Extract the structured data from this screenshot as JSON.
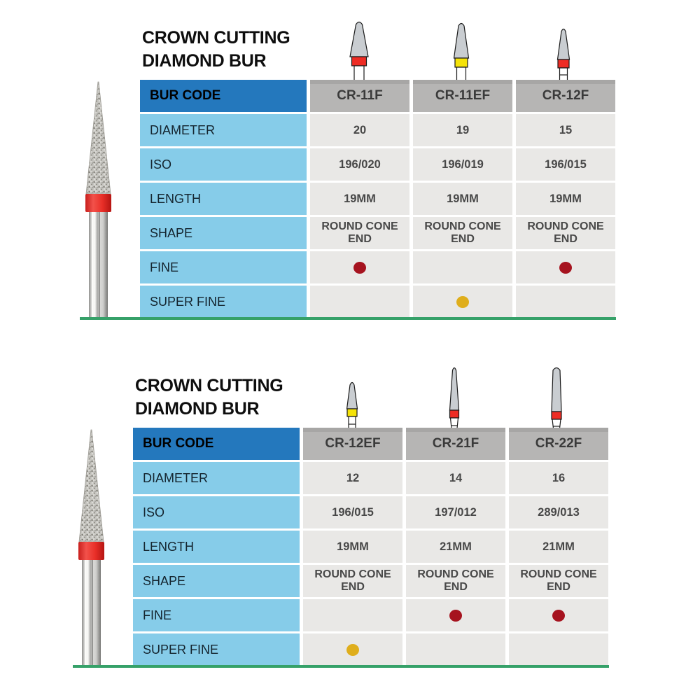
{
  "colors": {
    "header_blue": "#2478bd",
    "label_blue": "#86cce9",
    "col_header_gray": "#b6b5b4",
    "col_header_dark": "#a7a6a5",
    "cell_gray": "#e9e8e6",
    "fine_dot": "#a6131f",
    "super_fine_dot": "#dfae1c",
    "green_line": "#36a169",
    "band_red": "#ee2c24",
    "band_yellow": "#f5e308"
  },
  "row_labels": {
    "bur_code": "BUR CODE",
    "diameter": "DIAMETER",
    "iso": "ISO",
    "length": "LENGTH",
    "shape": "SHAPE",
    "fine": "FINE",
    "super_fine": "SUPER FINE"
  },
  "sections": [
    {
      "title_line1": "CROWN CUTTING",
      "title_line2": "DIAMOND BUR",
      "columns": [
        {
          "code": "CR-11F",
          "diameter": "20",
          "iso": "196/020",
          "length": "19MM",
          "shape": "ROUND CONE END",
          "fine": true,
          "super_fine": false,
          "icon": {
            "name": "round-cone-end-bur-red-band",
            "variant": "wide",
            "band": "#ee2c24"
          }
        },
        {
          "code": "CR-11EF",
          "diameter": "19",
          "iso": "196/019",
          "length": "19MM",
          "shape": "ROUND CONE END",
          "fine": false,
          "super_fine": true,
          "icon": {
            "name": "round-cone-end-bur-yellow-band",
            "variant": "medium",
            "band": "#f5e308"
          }
        },
        {
          "code": "CR-12F",
          "diameter": "15",
          "iso": "196/015",
          "length": "19MM",
          "shape": "ROUND CONE END",
          "fine": true,
          "super_fine": false,
          "icon": {
            "name": "round-cone-end-bur-red-band",
            "variant": "small",
            "band": "#ee2c24"
          }
        }
      ]
    },
    {
      "title_line1": "CROWN CUTTING",
      "title_line2": "DIAMOND BUR",
      "columns": [
        {
          "code": "CR-12EF",
          "diameter": "12",
          "iso": "196/015",
          "length": "19MM",
          "shape": "ROUND CONE END",
          "fine": false,
          "super_fine": true,
          "icon": {
            "name": "round-cone-end-bur-yellow-band",
            "variant": "small2",
            "band": "#f5e308"
          }
        },
        {
          "code": "CR-21F",
          "diameter": "14",
          "iso": "197/012",
          "length": "21MM",
          "shape": "ROUND CONE END",
          "fine": true,
          "super_fine": false,
          "icon": {
            "name": "round-cone-end-bur-red-band",
            "variant": "long",
            "band": "#ee2c24"
          }
        },
        {
          "code": "CR-22F",
          "diameter": "16",
          "iso": "289/013",
          "length": "21MM",
          "shape": "ROUND CONE END",
          "fine": true,
          "super_fine": false,
          "icon": {
            "name": "round-cone-end-bur-red-band",
            "variant": "tall",
            "band": "#ee2c24"
          }
        }
      ]
    }
  ]
}
